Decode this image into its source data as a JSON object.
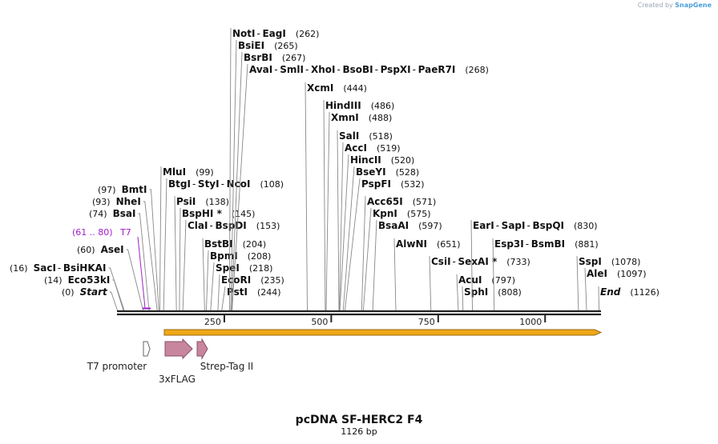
{
  "credit": {
    "prefix": "Created by",
    "brand": "SnapGene"
  },
  "map": {
    "title": "pcDNA SF-HERC2 F4",
    "length_label": "1126 bp",
    "total_bp": 1126,
    "ticks": [
      {
        "bp": 250,
        "label": "250"
      },
      {
        "bp": 500,
        "label": "500"
      },
      {
        "bp": 750,
        "label": "750"
      },
      {
        "bp": 1000,
        "label": "1000"
      }
    ]
  },
  "sites": [
    {
      "bp": 0,
      "pos": "(0)",
      "parts": [
        "Start"
      ],
      "italic": true,
      "side": "left"
    },
    {
      "bp": 14,
      "pos": "(14)",
      "parts": [
        "Eco53kI"
      ],
      "side": "left"
    },
    {
      "bp": 16,
      "pos": "(16)",
      "parts": [
        "SacI",
        "BsiHKAI"
      ],
      "side": "left"
    },
    {
      "bp": 60,
      "pos": "(60)",
      "parts": [
        "AseI"
      ],
      "side": "left"
    },
    {
      "bp": 74,
      "pos": "(74)",
      "parts": [
        "BsaI"
      ],
      "side": "left"
    },
    {
      "bp": 93,
      "pos": "(93)",
      "parts": [
        "NheI"
      ],
      "side": "left"
    },
    {
      "bp": 97,
      "pos": "(97)",
      "parts": [
        "BmtI"
      ],
      "side": "left"
    },
    {
      "bp": 99,
      "pos": "(99)",
      "parts": [
        "MluI"
      ],
      "side": "right"
    },
    {
      "bp": 108,
      "pos": "(108)",
      "parts": [
        "BtgI",
        "StyI",
        "NcoI"
      ],
      "side": "right"
    },
    {
      "bp": 138,
      "pos": "(138)",
      "parts": [
        "PsiI"
      ],
      "side": "right"
    },
    {
      "bp": 145,
      "pos": "(145)",
      "parts": [
        "BspHI *"
      ],
      "side": "right"
    },
    {
      "bp": 153,
      "pos": "(153)",
      "parts": [
        "ClaI",
        "BspDI"
      ],
      "side": "right"
    },
    {
      "bp": 204,
      "pos": "(204)",
      "parts": [
        "BstBI"
      ],
      "side": "right"
    },
    {
      "bp": 208,
      "pos": "(208)",
      "parts": [
        "BpmI"
      ],
      "side": "right"
    },
    {
      "bp": 218,
      "pos": "(218)",
      "parts": [
        "SpeI"
      ],
      "side": "right"
    },
    {
      "bp": 235,
      "pos": "(235)",
      "parts": [
        "EcoRI"
      ],
      "side": "right"
    },
    {
      "bp": 244,
      "pos": "(244)",
      "parts": [
        "PstI"
      ],
      "side": "right"
    },
    {
      "bp": 262,
      "pos": "(262)",
      "parts": [
        "NotI",
        "EagI"
      ],
      "side": "right"
    },
    {
      "bp": 265,
      "pos": "(265)",
      "parts": [
        "BsiEI"
      ],
      "side": "right"
    },
    {
      "bp": 267,
      "pos": "(267)",
      "parts": [
        "BsrBI"
      ],
      "side": "right"
    },
    {
      "bp": 268,
      "pos": "(268)",
      "parts": [
        "AvaI",
        "SmlI",
        "XhoI",
        "BsoBI",
        "PspXI",
        "PaeR7I"
      ],
      "side": "right"
    },
    {
      "bp": 444,
      "pos": "(444)",
      "parts": [
        "XcmI"
      ],
      "side": "right"
    },
    {
      "bp": 486,
      "pos": "(486)",
      "parts": [
        "HindIII"
      ],
      "side": "right"
    },
    {
      "bp": 488,
      "pos": "(488)",
      "parts": [
        "XmnI"
      ],
      "side": "right"
    },
    {
      "bp": 518,
      "pos": "(518)",
      "parts": [
        "SalI"
      ],
      "side": "right"
    },
    {
      "bp": 519,
      "pos": "(519)",
      "parts": [
        "AccI"
      ],
      "side": "right"
    },
    {
      "bp": 520,
      "pos": "(520)",
      "parts": [
        "HincII"
      ],
      "side": "right"
    },
    {
      "bp": 528,
      "pos": "(528)",
      "parts": [
        "BseYI"
      ],
      "side": "right"
    },
    {
      "bp": 532,
      "pos": "(532)",
      "parts": [
        "PspFI"
      ],
      "side": "right"
    },
    {
      "bp": 571,
      "pos": "(571)",
      "parts": [
        "Acc65I"
      ],
      "side": "right"
    },
    {
      "bp": 575,
      "pos": "(575)",
      "parts": [
        "KpnI"
      ],
      "side": "right"
    },
    {
      "bp": 597,
      "pos": "(597)",
      "parts": [
        "BsaAI"
      ],
      "side": "right"
    },
    {
      "bp": 651,
      "pos": "(651)",
      "parts": [
        "AlwNI"
      ],
      "side": "right"
    },
    {
      "bp": 733,
      "pos": "(733)",
      "parts": [
        "CsiI",
        "SexAI *"
      ],
      "side": "right"
    },
    {
      "bp": 797,
      "pos": "(797)",
      "parts": [
        "AcuI"
      ],
      "side": "right"
    },
    {
      "bp": 808,
      "pos": "(808)",
      "parts": [
        "SphI"
      ],
      "side": "right"
    },
    {
      "bp": 830,
      "pos": "(830)",
      "parts": [
        "EarI",
        "SapI",
        "BspQI"
      ],
      "side": "right"
    },
    {
      "bp": 881,
      "pos": "(881)",
      "parts": [
        "Esp3I",
        "BsmBI"
      ],
      "side": "right"
    },
    {
      "bp": 1078,
      "pos": "(1078)",
      "parts": [
        "SspI"
      ],
      "side": "right"
    },
    {
      "bp": 1097,
      "pos": "(1097)",
      "parts": [
        "AleI"
      ],
      "side": "right"
    },
    {
      "bp": 1126,
      "pos": "(1126)",
      "parts": [
        "End"
      ],
      "italic": true,
      "side": "right"
    }
  ],
  "primer": {
    "label": "T7",
    "range": "(61 .. 80)",
    "color": "#a020c8"
  },
  "features": [
    {
      "label": "T7 promoter",
      "fill": "#ffffff",
      "stroke": "#666666"
    },
    {
      "label": "3xFLAG",
      "fill": "#c8859e",
      "stroke": "#8a5068"
    },
    {
      "label": "Strep-Tag II",
      "fill": "#c8859e",
      "stroke": "#8a5068"
    }
  ],
  "orf": {
    "fill": "#f0a818",
    "stroke": "#9a6a10"
  }
}
